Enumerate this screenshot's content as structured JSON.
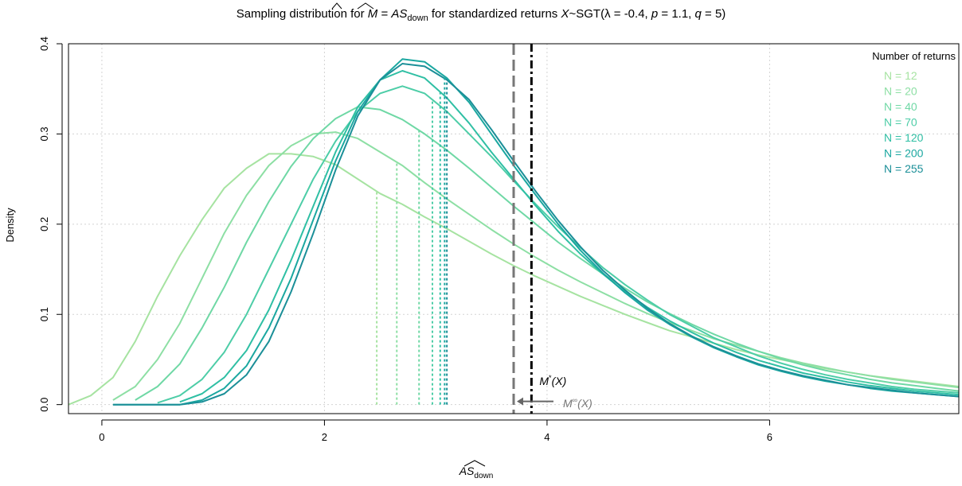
{
  "chart_data": {
    "type": "line",
    "title": {
      "prefix": "Sampling distribution for ",
      "m_hat": "M",
      "equals": " = ",
      "as_hat": "AS",
      "as_sub": "down",
      "mid": " for standardized returns ",
      "var": "X",
      "tilde_dist": "~SGT(",
      "lambda": "λ",
      "lambda_val": " = -0.4, ",
      "p": "p",
      "p_val": " = 1.1, ",
      "q": "q",
      "q_val": " = 5)"
    },
    "xlabel": {
      "main": "AS",
      "sub": "down"
    },
    "ylabel": "Density",
    "xlim": [
      -0.3,
      7.7
    ],
    "ylim": [
      -0.01,
      0.4
    ],
    "x_ticks": [
      0,
      2,
      4,
      6
    ],
    "y_ticks": [
      0.0,
      0.1,
      0.2,
      0.3,
      0.4
    ],
    "x_tick_labels": [
      "0",
      "2",
      "4",
      "6"
    ],
    "y_tick_labels": [
      "0.0",
      "0.1",
      "0.2",
      "0.3",
      "0.4"
    ],
    "grid": true,
    "legend": {
      "title": "Number of returns",
      "placement": "top-right",
      "entries": [
        "N =  12",
        "N =  20",
        "N =  40",
        "N =  70",
        "N = 120",
        "N = 200",
        "N = 255"
      ]
    },
    "series": [
      {
        "name": "N =  12",
        "color": "#a6e3a1",
        "mean_line": 2.47,
        "x": [
          -0.3,
          -0.1,
          0.1,
          0.3,
          0.5,
          0.7,
          0.9,
          1.1,
          1.3,
          1.5,
          1.7,
          1.9,
          2.1,
          2.3,
          2.5,
          2.7,
          2.9,
          3.1,
          3.3,
          3.5,
          3.7,
          3.9,
          4.1,
          4.3,
          4.5,
          4.7,
          4.9,
          5.1,
          5.3,
          5.5,
          5.7,
          5.9,
          6.1,
          6.3,
          6.5,
          6.7,
          6.9,
          7.1,
          7.3,
          7.5,
          7.7
        ],
        "y": [
          0.0,
          0.01,
          0.03,
          0.07,
          0.12,
          0.165,
          0.205,
          0.24,
          0.262,
          0.278,
          0.278,
          0.275,
          0.266,
          0.25,
          0.234,
          0.222,
          0.208,
          0.195,
          0.181,
          0.167,
          0.154,
          0.142,
          0.131,
          0.12,
          0.11,
          0.1,
          0.091,
          0.082,
          0.075,
          0.068,
          0.061,
          0.055,
          0.05,
          0.045,
          0.04,
          0.036,
          0.032,
          0.029,
          0.026,
          0.023,
          0.02
        ]
      },
      {
        "name": "N =  20",
        "color": "#8ddfa4",
        "mean_line": 2.65,
        "x": [
          0.1,
          0.3,
          0.5,
          0.7,
          0.9,
          1.1,
          1.3,
          1.5,
          1.7,
          1.9,
          2.1,
          2.3,
          2.5,
          2.7,
          2.9,
          3.1,
          3.3,
          3.5,
          3.7,
          3.9,
          4.1,
          4.3,
          4.5,
          4.7,
          4.9,
          5.1,
          5.3,
          5.5,
          5.7,
          5.9,
          6.1,
          6.3,
          6.5,
          6.7,
          6.9,
          7.1,
          7.3,
          7.5,
          7.7
        ],
        "y": [
          0.005,
          0.02,
          0.05,
          0.09,
          0.14,
          0.19,
          0.232,
          0.265,
          0.287,
          0.3,
          0.302,
          0.295,
          0.28,
          0.265,
          0.246,
          0.228,
          0.211,
          0.194,
          0.178,
          0.163,
          0.149,
          0.136,
          0.124,
          0.112,
          0.101,
          0.091,
          0.082,
          0.073,
          0.066,
          0.059,
          0.052,
          0.046,
          0.041,
          0.036,
          0.032,
          0.028,
          0.025,
          0.022,
          0.019
        ]
      },
      {
        "name": "N =  40",
        "color": "#6fd8a5",
        "mean_line": 2.85,
        "x": [
          0.3,
          0.5,
          0.7,
          0.9,
          1.1,
          1.3,
          1.5,
          1.7,
          1.9,
          2.1,
          2.3,
          2.5,
          2.7,
          2.9,
          3.1,
          3.3,
          3.5,
          3.7,
          3.9,
          4.1,
          4.3,
          4.5,
          4.7,
          4.9,
          5.1,
          5.3,
          5.5,
          5.7,
          5.9,
          6.1,
          6.3,
          6.5,
          6.7,
          6.9,
          7.1,
          7.3,
          7.5,
          7.7
        ],
        "y": [
          0.005,
          0.02,
          0.045,
          0.085,
          0.13,
          0.18,
          0.225,
          0.264,
          0.295,
          0.317,
          0.33,
          0.327,
          0.316,
          0.3,
          0.282,
          0.262,
          0.241,
          0.22,
          0.2,
          0.18,
          0.162,
          0.145,
          0.129,
          0.114,
          0.101,
          0.089,
          0.078,
          0.068,
          0.059,
          0.051,
          0.044,
          0.038,
          0.033,
          0.028,
          0.024,
          0.021,
          0.018,
          0.015
        ]
      },
      {
        "name": "N =  70",
        "color": "#4dcda7",
        "mean_line": 2.97,
        "x": [
          0.5,
          0.7,
          0.9,
          1.1,
          1.3,
          1.5,
          1.7,
          1.9,
          2.1,
          2.3,
          2.5,
          2.7,
          2.9,
          3.1,
          3.3,
          3.5,
          3.7,
          3.9,
          4.1,
          4.3,
          4.5,
          4.7,
          4.9,
          5.1,
          5.3,
          5.5,
          5.7,
          5.9,
          6.1,
          6.3,
          6.5,
          6.7,
          6.9,
          7.1,
          7.3,
          7.5,
          7.7
        ],
        "y": [
          0.002,
          0.01,
          0.028,
          0.058,
          0.1,
          0.15,
          0.2,
          0.25,
          0.292,
          0.325,
          0.345,
          0.353,
          0.345,
          0.325,
          0.3,
          0.275,
          0.248,
          0.222,
          0.197,
          0.174,
          0.152,
          0.133,
          0.116,
          0.1,
          0.087,
          0.074,
          0.064,
          0.054,
          0.046,
          0.039,
          0.033,
          0.028,
          0.024,
          0.02,
          0.017,
          0.015,
          0.013
        ]
      },
      {
        "name": "N = 120",
        "color": "#2fbfa4",
        "mean_line": 3.04,
        "x": [
          0.7,
          0.9,
          1.1,
          1.3,
          1.5,
          1.7,
          1.9,
          2.1,
          2.3,
          2.5,
          2.7,
          2.9,
          3.1,
          3.3,
          3.5,
          3.7,
          3.9,
          4.1,
          4.3,
          4.5,
          4.7,
          4.9,
          5.1,
          5.3,
          5.5,
          5.7,
          5.9,
          6.1,
          6.3,
          6.5,
          6.7,
          6.9,
          7.1,
          7.3,
          7.5,
          7.7
        ],
        "y": [
          0.003,
          0.012,
          0.03,
          0.06,
          0.105,
          0.16,
          0.22,
          0.28,
          0.33,
          0.36,
          0.37,
          0.362,
          0.34,
          0.312,
          0.28,
          0.25,
          0.22,
          0.192,
          0.167,
          0.145,
          0.125,
          0.108,
          0.093,
          0.08,
          0.068,
          0.058,
          0.049,
          0.042,
          0.035,
          0.03,
          0.025,
          0.021,
          0.018,
          0.015,
          0.013,
          0.011
        ]
      },
      {
        "name": "N = 200",
        "color": "#1aa7a0",
        "mean_line": 3.08,
        "x": [
          0.1,
          0.3,
          0.5,
          0.7,
          0.9,
          1.1,
          1.3,
          1.5,
          1.7,
          1.9,
          2.1,
          2.3,
          2.5,
          2.7,
          2.9,
          3.1,
          3.3,
          3.5,
          3.7,
          3.9,
          4.1,
          4.3,
          4.5,
          4.7,
          4.9,
          5.1,
          5.3,
          5.5,
          5.7,
          5.9,
          6.1,
          6.3,
          6.5,
          6.7,
          6.9,
          7.1,
          7.3,
          7.5,
          7.7
        ],
        "y": [
          0.0,
          0.0,
          0.0,
          0.0,
          0.005,
          0.018,
          0.043,
          0.085,
          0.14,
          0.205,
          0.27,
          0.325,
          0.36,
          0.383,
          0.38,
          0.362,
          0.335,
          0.3,
          0.265,
          0.232,
          0.2,
          0.171,
          0.146,
          0.124,
          0.105,
          0.089,
          0.075,
          0.063,
          0.053,
          0.044,
          0.037,
          0.031,
          0.026,
          0.022,
          0.018,
          0.015,
          0.013,
          0.011,
          0.009
        ]
      },
      {
        "name": "N = 255",
        "color": "#1b8f98",
        "mean_line": 3.1,
        "x": [
          0.1,
          0.3,
          0.5,
          0.7,
          0.9,
          1.1,
          1.3,
          1.5,
          1.7,
          1.9,
          2.1,
          2.3,
          2.5,
          2.7,
          2.9,
          3.1,
          3.3,
          3.5,
          3.7,
          3.9,
          4.1,
          4.3,
          4.5,
          4.7,
          4.9,
          5.1,
          5.3,
          5.5,
          5.7,
          5.9,
          6.1,
          6.3,
          6.5,
          6.7,
          6.9,
          7.1,
          7.3,
          7.5,
          7.7
        ],
        "y": [
          0.0,
          0.0,
          0.0,
          0.0,
          0.003,
          0.012,
          0.033,
          0.07,
          0.125,
          0.19,
          0.26,
          0.32,
          0.36,
          0.378,
          0.375,
          0.36,
          0.338,
          0.305,
          0.27,
          0.236,
          0.204,
          0.175,
          0.149,
          0.127,
          0.107,
          0.09,
          0.076,
          0.064,
          0.054,
          0.045,
          0.038,
          0.032,
          0.027,
          0.022,
          0.019,
          0.016,
          0.013,
          0.011,
          0.009
        ]
      }
    ],
    "reference_lines": [
      {
        "label_main": "M",
        "label_sup": "*",
        "label_arg": "(X)",
        "x": 3.86,
        "style": "dash-dot",
        "color": "#000000"
      },
      {
        "label_main": "M",
        "label_sup": "∞",
        "label_arg": "(X)",
        "x": 3.7,
        "style": "dashed",
        "color": "#777777"
      }
    ]
  }
}
